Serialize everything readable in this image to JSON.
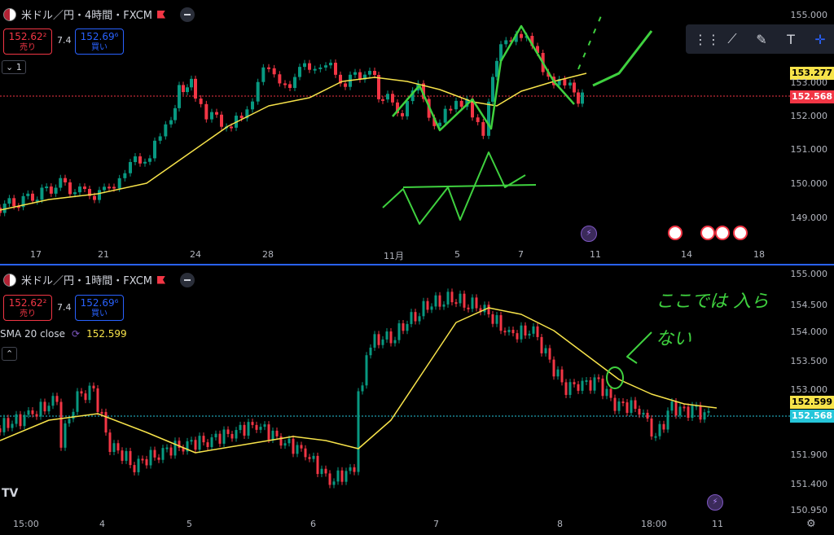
{
  "top": {
    "title": "米ドル／円・4時間・FXCM",
    "sell_price": "152.62²",
    "sell_label": "売り",
    "buy_price": "152.69⁶",
    "buy_label": "買い",
    "spread": "7.4",
    "interval_tag": "1",
    "ma_label": "153.277",
    "last_label": "152.568",
    "price_ticks": [
      "155.000",
      "153.000",
      "152.000",
      "151.000",
      "150.000",
      "149.000"
    ],
    "date_ticks": [
      "17",
      "21",
      "24",
      "28",
      "11月",
      "5",
      "7",
      "11",
      "14",
      "18"
    ]
  },
  "bottom": {
    "title": "米ドル／円・1時間・FXCM",
    "sell_price": "152.62²",
    "sell_label": "売り",
    "buy_price": "152.69⁶",
    "buy_label": "買い",
    "spread": "7.4",
    "sma_name": "SMA 20 close",
    "sma_value": "152.599",
    "ma_label": "152.599",
    "last_label": "152.568",
    "price_ticks": [
      "155.000",
      "154.500",
      "154.000",
      "153.500",
      "153.000",
      "151.900",
      "151.400",
      "150.950"
    ],
    "date_ticks": [
      "15:00",
      "4",
      "5",
      "6",
      "7",
      "8",
      "18:00",
      "11"
    ],
    "annotation": "ここでは 入らない"
  },
  "colors": {
    "up": "#089981",
    "down": "#f23645",
    "ma": "#f7e34a",
    "draw": "#3fd13f",
    "accent": "#2962ff"
  }
}
